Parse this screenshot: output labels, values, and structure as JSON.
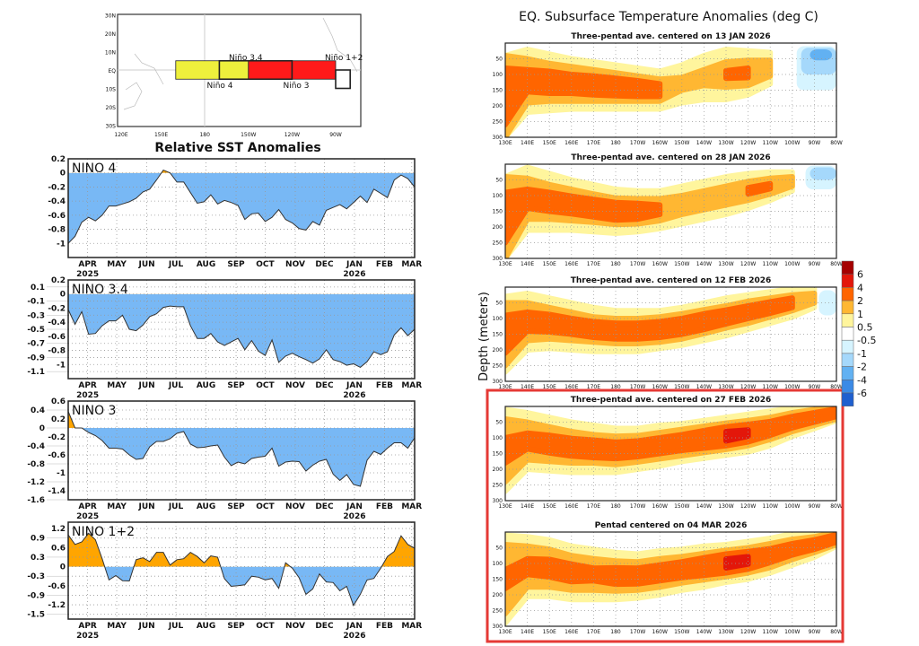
{
  "map": {
    "lat_labels": [
      {
        "label": "30N",
        "lat": 30
      },
      {
        "label": "20N",
        "lat": 20
      },
      {
        "label": "10N",
        "lat": 10
      },
      {
        "label": "EQ",
        "lat": 0
      },
      {
        "label": "10S",
        "lat": -10
      },
      {
        "label": "20S",
        "lat": -20
      },
      {
        "label": "30S",
        "lat": -30
      }
    ],
    "lon_labels": [
      {
        "label": "120E",
        "lon": 120
      },
      {
        "label": "150E",
        "lon": 150
      },
      {
        "label": "180",
        "lon": 180
      },
      {
        "label": "150W",
        "lon": 210
      },
      {
        "label": "120W",
        "lon": 240
      },
      {
        "label": "90W",
        "lon": 270
      }
    ],
    "regions": [
      {
        "name": "Niño 4",
        "lon": [
          160,
          210
        ],
        "lat": [
          -5,
          5
        ],
        "color": "#eef03c"
      },
      {
        "name": "Niño 3",
        "lon": [
          210,
          270
        ],
        "lat": [
          -5,
          5
        ],
        "color": "#ff1a1a"
      },
      {
        "name": "Niño 3.4",
        "lon": [
          190,
          240
        ],
        "lat": [
          -5,
          5
        ],
        "color": "none"
      },
      {
        "name": "Niño 1+2",
        "lon": [
          270,
          280
        ],
        "lat": [
          -10,
          0
        ],
        "color": "#ffffff"
      }
    ]
  },
  "sst": {
    "title": "Relative SST Anomalies",
    "positive_color": "#ffa500",
    "negative_color": "#78b8f5",
    "x": [
      "2025-03-12",
      "2025-03-19",
      "2025-03-26",
      "2025-04-02",
      "2025-04-09",
      "2025-04-16",
      "2025-04-23",
      "2025-04-30",
      "2025-05-07",
      "2025-05-14",
      "2025-05-21",
      "2025-05-28",
      "2025-06-04",
      "2025-06-11",
      "2025-06-18",
      "2025-06-25",
      "2025-07-02",
      "2025-07-09",
      "2025-07-16",
      "2025-07-23",
      "2025-07-30",
      "2025-08-06",
      "2025-08-13",
      "2025-08-20",
      "2025-08-27",
      "2025-09-03",
      "2025-09-10",
      "2025-09-17",
      "2025-09-24",
      "2025-10-01",
      "2025-10-08",
      "2025-10-15",
      "2025-10-22",
      "2025-10-29",
      "2025-11-05",
      "2025-11-12",
      "2025-11-19",
      "2025-11-26",
      "2025-12-03",
      "2025-12-10",
      "2025-12-17",
      "2025-12-24",
      "2025-12-31",
      "2026-01-07",
      "2026-01-14",
      "2026-01-21",
      "2026-01-28",
      "2026-02-04",
      "2026-02-11",
      "2026-02-18",
      "2026-02-25",
      "2026-03-04"
    ],
    "xlim": [
      "2025-03-12",
      "2026-03-04"
    ],
    "month_ticks": [
      {
        "label": "APR",
        "date": "2025-04-01"
      },
      {
        "label": "MAY",
        "date": "2025-05-01"
      },
      {
        "label": "JUN",
        "date": "2025-06-01"
      },
      {
        "label": "JUL",
        "date": "2025-07-01"
      },
      {
        "label": "AUG",
        "date": "2025-08-01"
      },
      {
        "label": "SEP",
        "date": "2025-09-01"
      },
      {
        "label": "OCT",
        "date": "2025-10-01"
      },
      {
        "label": "NOV",
        "date": "2025-11-01"
      },
      {
        "label": "DEC",
        "date": "2025-12-01"
      },
      {
        "label": "JAN",
        "date": "2026-01-01"
      },
      {
        "label": "FEB",
        "date": "2026-02-01"
      },
      {
        "label": "MAR",
        "date": "2026-03-01"
      }
    ],
    "year_labels": [
      {
        "label": "2025",
        "date": "2025-04-01"
      },
      {
        "label": "2026",
        "date": "2026-01-01"
      }
    ]
  },
  "chart_data": [
    {
      "type": "area",
      "label": "NINO  4",
      "ylim": [
        -1.2,
        0.2
      ],
      "grid": true,
      "yticks": [
        0.2,
        0,
        -0.2,
        -0.4,
        -0.6,
        -0.8,
        -1
      ],
      "values": [
        -1.0,
        -0.9,
        -0.7,
        -0.63,
        -0.68,
        -0.6,
        -0.47,
        -0.47,
        -0.44,
        -0.41,
        -0.36,
        -0.27,
        -0.23,
        -0.1,
        0.04,
        0.0,
        -0.13,
        -0.13,
        -0.28,
        -0.43,
        -0.41,
        -0.31,
        -0.44,
        -0.39,
        -0.42,
        -0.46,
        -0.66,
        -0.58,
        -0.57,
        -0.69,
        -0.63,
        -0.52,
        -0.66,
        -0.71,
        -0.79,
        -0.81,
        -0.69,
        -0.74,
        -0.53,
        -0.49,
        -0.45,
        -0.51,
        -0.42,
        -0.33,
        -0.42,
        -0.23,
        -0.29,
        -0.35,
        -0.1,
        -0.03,
        -0.08,
        -0.2
      ]
    },
    {
      "type": "area",
      "label": "NINO  3.4",
      "ylim": [
        -1.2,
        0.2
      ],
      "grid": true,
      "yticks": [
        0.2,
        0.1,
        0,
        -0.1,
        -0.2,
        -0.3,
        -0.4,
        -0.5,
        -0.6,
        -0.7,
        -0.8,
        -0.9,
        -1,
        -1.1
      ],
      "values": [
        -0.22,
        -0.43,
        -0.25,
        -0.57,
        -0.56,
        -0.45,
        -0.38,
        -0.38,
        -0.3,
        -0.5,
        -0.52,
        -0.44,
        -0.32,
        -0.28,
        -0.19,
        -0.17,
        -0.18,
        -0.18,
        -0.45,
        -0.63,
        -0.63,
        -0.56,
        -0.68,
        -0.73,
        -0.68,
        -0.63,
        -0.79,
        -0.66,
        -0.81,
        -0.87,
        -0.65,
        -0.97,
        -0.88,
        -0.84,
        -0.89,
        -0.93,
        -0.98,
        -0.92,
        -0.79,
        -0.93,
        -0.96,
        -1.01,
        -0.99,
        -1.04,
        -0.96,
        -0.82,
        -0.86,
        -0.82,
        -0.58,
        -0.48,
        -0.59,
        -0.5
      ]
    },
    {
      "type": "area",
      "label": "NINO  3",
      "ylim": [
        -1.6,
        0.6
      ],
      "grid": true,
      "yticks": [
        0.6,
        0.4,
        0.2,
        0,
        -0.2,
        -0.4,
        -0.6,
        -0.8,
        -1,
        -1.2,
        -1.4,
        -1.6
      ],
      "values": [
        0.37,
        0.0,
        0.0,
        -0.1,
        -0.17,
        -0.28,
        -0.45,
        -0.45,
        -0.47,
        -0.6,
        -0.7,
        -0.68,
        -0.42,
        -0.3,
        -0.3,
        -0.24,
        -0.12,
        -0.08,
        -0.36,
        -0.44,
        -0.43,
        -0.4,
        -0.38,
        -0.65,
        -0.84,
        -0.76,
        -0.8,
        -0.68,
        -0.65,
        -0.63,
        -0.45,
        -0.85,
        -0.76,
        -0.74,
        -0.75,
        -0.96,
        -0.83,
        -0.74,
        -0.7,
        -1.03,
        -1.17,
        -1.04,
        -1.26,
        -1.3,
        -0.72,
        -0.52,
        -0.59,
        -0.45,
        -0.33,
        -0.33,
        -0.45,
        -0.22
      ]
    },
    {
      "type": "area",
      "label": "NINO  1+2",
      "ylim": [
        -1.65,
        1.4
      ],
      "grid": true,
      "yticks": [
        1.2,
        0.9,
        0.6,
        0.3,
        0,
        -0.3,
        -0.6,
        -0.9,
        -1.2,
        -1.5
      ],
      "values": [
        1.0,
        0.7,
        0.78,
        1.05,
        0.85,
        0.25,
        -0.42,
        -0.28,
        -0.44,
        -0.45,
        0.22,
        0.28,
        0.16,
        0.45,
        0.45,
        0.05,
        0.22,
        0.25,
        0.45,
        0.32,
        0.12,
        0.34,
        0.3,
        -0.38,
        -0.62,
        -0.6,
        -0.57,
        -0.3,
        -0.33,
        -0.42,
        -0.37,
        -0.68,
        0.12,
        -0.05,
        -0.35,
        -0.87,
        -0.7,
        -0.23,
        -0.48,
        -0.5,
        -0.76,
        -0.62,
        -1.22,
        -0.87,
        -0.42,
        -0.37,
        -0.05,
        0.32,
        0.48,
        0.97,
        0.7,
        0.58
      ]
    },
    {
      "type": "heatmap",
      "title": "EQ. Subsurface Temperature Anomalies (deg C)",
      "ylabel": "Depth (meters)",
      "lon_ticks": [
        "130E",
        "140E",
        "150E",
        "160E",
        "170E",
        "180",
        "170W",
        "160W",
        "150W",
        "140W",
        "130W",
        "120W",
        "110W",
        "100W",
        "90W",
        "80W"
      ],
      "depth_ticks": [
        50,
        100,
        150,
        200,
        250,
        300
      ],
      "depth_range": [
        0,
        300
      ],
      "colorbar": {
        "labels": [
          6,
          4,
          2,
          1,
          0.5,
          -0.5,
          -1,
          -2,
          -4,
          -6
        ],
        "colors": [
          "#a50000",
          "#e3170a",
          "#ff6500",
          "#ffb732",
          "#fff59d",
          "#ffffff",
          "#d6f4ff",
          "#a5d8fb",
          "#62b1f2",
          "#3b8ae6",
          "#1f5fcf"
        ]
      },
      "lon_nodes_degE": [
        130,
        140,
        150,
        160,
        170,
        180,
        190,
        200,
        210,
        220,
        230,
        240,
        250,
        260,
        270,
        280
      ],
      "highlight_color": "#e53935",
      "panels": [
        {
          "title": "Three-pentad ave. centered on 13 JAN 2026",
          "highlighted": false,
          "core_depth": [
            170,
            120,
            125,
            130,
            135,
            140,
            145,
            150,
            130,
            110,
            100,
            95,
            80,
            60,
            40,
            30
          ],
          "halfwidth": {
            "0.5": [
              130,
              100,
              90,
              80,
              75,
              70,
              65,
              60,
              60,
              70,
              80,
              70,
              50,
              0,
              0,
              0
            ],
            "1": [
              130,
              70,
              60,
              55,
              50,
              45,
              40,
              35,
              20,
              25,
              40,
              40,
              25,
              0,
              0,
              0
            ],
            "2": [
              90,
              35,
              35,
              30,
              30,
              28,
              25,
              20,
              0,
              0,
              12,
              15,
              0,
              0,
              0,
              0
            ],
            "4": [
              0,
              0,
              0,
              0,
              0,
              0,
              0,
              0,
              0,
              0,
              0,
              0,
              0,
              0,
              0,
              0
            ]
          },
          "cold": [
            {
              "lon": [
                262,
                280
              ],
              "depth": [
                10,
                150
              ],
              "level": -0.5
            },
            {
              "lon": [
                264,
                280
              ],
              "depth": [
                15,
                100
              ],
              "level": -1
            },
            {
              "lon": [
                268,
                278
              ],
              "depth": [
                20,
                55
              ],
              "level": -2
            }
          ]
        },
        {
          "title": "Three-pentad ave. centered on 28 JAN 2026",
          "highlighted": false,
          "core_depth": [
            170,
            110,
            120,
            130,
            140,
            150,
            150,
            145,
            130,
            115,
            100,
            85,
            70,
            55,
            40,
            30
          ],
          "halfwidth": {
            "0.5": [
              130,
              100,
              90,
              80,
              75,
              70,
              65,
              60,
              60,
              60,
              60,
              55,
              45,
              30,
              0,
              0
            ],
            "1": [
              130,
              65,
              55,
              50,
              45,
              42,
              40,
              35,
              30,
              30,
              30,
              30,
              25,
              15,
              0,
              0
            ],
            "2": [
              80,
              30,
              30,
              28,
              28,
              28,
              25,
              15,
              0,
              0,
              0,
              10,
              8,
              0,
              0,
              0
            ],
            "4": [
              0,
              0,
              0,
              0,
              0,
              0,
              0,
              0,
              0,
              0,
              0,
              0,
              0,
              0,
              0,
              0
            ]
          },
          "cold": [
            {
              "lon": [
                266,
                280
              ],
              "depth": [
                5,
                80
              ],
              "level": -0.5
            },
            {
              "lon": [
                268,
                280
              ],
              "depth": [
                10,
                50
              ],
              "level": -1
            }
          ]
        },
        {
          "title": "Three-pentad ave. centered on 12 FEB 2026",
          "highlighted": false,
          "core_depth": [
            150,
            110,
            115,
            125,
            135,
            140,
            140,
            135,
            125,
            110,
            95,
            80,
            65,
            50,
            35,
            25
          ],
          "halfwidth": {
            "0.5": [
              120,
              90,
              80,
              75,
              70,
              65,
              65,
              60,
              60,
              60,
              60,
              55,
              50,
              45,
              30,
              0
            ],
            "1": [
              100,
              60,
              50,
              45,
              40,
              40,
              40,
              40,
              40,
              38,
              35,
              35,
              30,
              25,
              15,
              0
            ],
            "2": [
              60,
              30,
              28,
              25,
              25,
              25,
              25,
              25,
              25,
              25,
              22,
              20,
              18,
              15,
              0,
              0
            ],
            "4": [
              0,
              0,
              0,
              0,
              0,
              0,
              0,
              0,
              0,
              0,
              0,
              0,
              0,
              0,
              0,
              0
            ]
          },
          "cold": [
            {
              "lon": [
                272,
                280
              ],
              "depth": [
                10,
                90
              ],
              "level": -0.5
            }
          ]
        },
        {
          "title": "Three-pentad ave. centered on 27 FEB 2026",
          "highlighted": true,
          "core_depth": [
            140,
            110,
            120,
            130,
            135,
            140,
            135,
            125,
            115,
            105,
            95,
            85,
            70,
            50,
            35,
            20
          ],
          "halfwidth": {
            "0.5": [
              130,
              90,
              85,
              80,
              75,
              70,
              65,
              65,
              60,
              60,
              60,
              60,
              55,
              45,
              35,
              25
            ],
            "1": [
              100,
              60,
              55,
              50,
              45,
              45,
              42,
              42,
              42,
              42,
              42,
              40,
              35,
              30,
              25,
              20
            ],
            "2": [
              40,
              25,
              28,
              28,
              28,
              26,
              25,
              25,
              25,
              28,
              30,
              28,
              22,
              18,
              15,
              12
            ],
            "4": [
              0,
              0,
              0,
              0,
              0,
              0,
              0,
              0,
              0,
              0,
              15,
              10,
              0,
              0,
              0,
              0
            ]
          },
          "cold": []
        },
        {
          "title": "Pentad centered on 04 MAR 2026",
          "highlighted": true,
          "core_depth": [
            150,
            110,
            115,
            130,
            135,
            140,
            140,
            130,
            120,
            110,
            100,
            90,
            75,
            55,
            40,
            20
          ],
          "halfwidth": {
            "0.5": [
              140,
              95,
              90,
              85,
              80,
              75,
              70,
              70,
              65,
              65,
              60,
              60,
              55,
              50,
              40,
              25
            ],
            "1": [
              110,
              65,
              60,
              55,
              50,
              48,
              45,
              45,
              42,
              42,
              42,
              40,
              38,
              32,
              25,
              20
            ],
            "2": [
              30,
              25,
              28,
              28,
              20,
              26,
              25,
              25,
              25,
              28,
              30,
              28,
              22,
              18,
              15,
              12
            ],
            "4": [
              0,
              0,
              0,
              0,
              0,
              0,
              0,
              0,
              0,
              0,
              14,
              12,
              0,
              0,
              0,
              0
            ]
          },
          "cold": []
        }
      ]
    }
  ]
}
